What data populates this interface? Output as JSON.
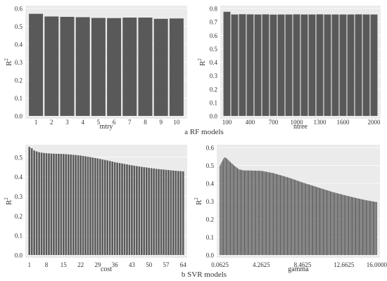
{
  "captions": {
    "rf": "a RF models",
    "svr": "b SVR models"
  },
  "colors": {
    "panel_bg": "#ebebeb",
    "grid": "#ffffff",
    "bar": "#595959",
    "text": "#333333"
  },
  "chart_data": [
    {
      "type": "bar",
      "ylabel": "R",
      "ylabel_sup": "2",
      "xlabel": "mtry",
      "categories": [
        "1",
        "2",
        "3",
        "4",
        "5",
        "6",
        "7",
        "8",
        "9",
        "10"
      ],
      "values": [
        0.57,
        0.555,
        0.553,
        0.551,
        0.547,
        0.546,
        0.549,
        0.549,
        0.542,
        0.544
      ],
      "ylim": [
        0,
        0.6
      ],
      "yticks": [
        "0.0",
        "0.1",
        "0.2",
        "0.3",
        "0.4",
        "0.5",
        "0.6"
      ],
      "ytick_values": [
        0,
        0.1,
        0.2,
        0.3,
        0.4,
        0.5,
        0.6
      ],
      "grid": true
    },
    {
      "type": "bar",
      "ylabel": "R",
      "ylabel_sup": "2",
      "xlabel": "ntree",
      "x": [
        100,
        200,
        300,
        400,
        500,
        600,
        700,
        800,
        900,
        1000,
        1100,
        1200,
        1300,
        1400,
        1500,
        1600,
        1700,
        1800,
        1900,
        2000
      ],
      "values": [
        0.775,
        0.755,
        0.757,
        0.756,
        0.755,
        0.756,
        0.754,
        0.755,
        0.755,
        0.756,
        0.755,
        0.755,
        0.756,
        0.755,
        0.755,
        0.755,
        0.755,
        0.756,
        0.755,
        0.755
      ],
      "xticks": [
        "100",
        "400",
        "700",
        "1000",
        "1300",
        "1600",
        "2000"
      ],
      "xtick_values": [
        100,
        400,
        700,
        1000,
        1300,
        1600,
        2000
      ],
      "ylim": [
        0,
        0.8
      ],
      "yticks": [
        "0.0",
        "0.1",
        "0.2",
        "0.3",
        "0.4",
        "0.5",
        "0.6",
        "0.7",
        "0.8"
      ],
      "ytick_values": [
        0,
        0.1,
        0.2,
        0.3,
        0.4,
        0.5,
        0.6,
        0.7,
        0.8
      ],
      "grid": true
    },
    {
      "type": "bar",
      "ylabel": "R",
      "ylabel_sup": "2",
      "xlabel": "cost",
      "x_range": [
        1,
        64
      ],
      "x_step": 1,
      "sampled_values": [
        [
          1,
          0.553
        ],
        [
          2,
          0.546
        ],
        [
          3,
          0.535
        ],
        [
          4,
          0.53
        ],
        [
          5,
          0.526
        ],
        [
          6,
          0.524
        ],
        [
          7,
          0.522
        ],
        [
          8,
          0.521
        ],
        [
          10,
          0.519
        ],
        [
          12,
          0.518
        ],
        [
          15,
          0.517
        ],
        [
          18,
          0.514
        ],
        [
          22,
          0.509
        ],
        [
          26,
          0.501
        ],
        [
          29,
          0.494
        ],
        [
          33,
          0.484
        ],
        [
          36,
          0.475
        ],
        [
          40,
          0.466
        ],
        [
          43,
          0.459
        ],
        [
          46,
          0.453
        ],
        [
          50,
          0.446
        ],
        [
          53,
          0.441
        ],
        [
          57,
          0.436
        ],
        [
          60,
          0.432
        ],
        [
          64,
          0.428
        ]
      ],
      "xticks": [
        "1",
        "8",
        "15",
        "22",
        "29",
        "36",
        "43",
        "50",
        "57",
        "64"
      ],
      "xtick_values": [
        1,
        8,
        15,
        22,
        29,
        36,
        43,
        50,
        57,
        64
      ],
      "ylim": [
        0,
        0.55
      ],
      "yticks": [
        "0.0",
        "0.1",
        "0.2",
        "0.3",
        "0.4",
        "0.5"
      ],
      "ytick_values": [
        0,
        0.1,
        0.2,
        0.3,
        0.4,
        0.5
      ],
      "grid": true
    },
    {
      "type": "bar",
      "ylabel": "R",
      "ylabel_sup": "2",
      "xlabel": "gamma",
      "x_range": [
        0.0625,
        16.0
      ],
      "bar_count": 180,
      "sampled_values": [
        [
          0.0625,
          0.5
        ],
        [
          0.25,
          0.52
        ],
        [
          0.5,
          0.545
        ],
        [
          0.7,
          0.542
        ],
        [
          1.0,
          0.525
        ],
        [
          1.5,
          0.5
        ],
        [
          2.0,
          0.478
        ],
        [
          2.5,
          0.472
        ],
        [
          3.0,
          0.472
        ],
        [
          4.2625,
          0.47
        ],
        [
          5.5,
          0.457
        ],
        [
          7.0,
          0.433
        ],
        [
          8.4625,
          0.405
        ],
        [
          10.0,
          0.378
        ],
        [
          11.5,
          0.352
        ],
        [
          12.6625,
          0.335
        ],
        [
          14.0,
          0.317
        ],
        [
          15.0,
          0.305
        ],
        [
          16.0,
          0.296
        ]
      ],
      "xticks": [
        "0.0625",
        "4.2625",
        "8.4625",
        "12.6625",
        "16.0000"
      ],
      "xtick_values": [
        0.0625,
        4.2625,
        8.4625,
        12.6625,
        16.0
      ],
      "ylim": [
        0,
        0.6
      ],
      "yticks": [
        "0.0",
        "0.1",
        "0.2",
        "0.3",
        "0.4",
        "0.5",
        "0.6"
      ],
      "ytick_values": [
        0,
        0.1,
        0.2,
        0.3,
        0.4,
        0.5,
        0.6
      ],
      "grid": true
    }
  ]
}
